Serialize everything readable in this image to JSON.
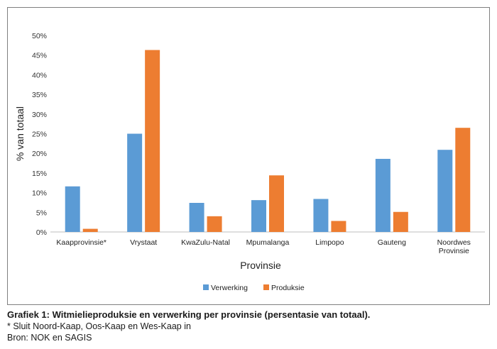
{
  "chart_data": {
    "type": "bar",
    "ylabel": "% van totaal",
    "xlabel": "Provinsie",
    "ylim": [
      0,
      50
    ],
    "yticks": [
      "0%",
      "5%",
      "10%",
      "15%",
      "20%",
      "25%",
      "30%",
      "35%",
      "40%",
      "45%",
      "50%"
    ],
    "grid": false,
    "legend": "bottom",
    "categories": [
      [
        "Kaapprovinsie*"
      ],
      [
        "Vrystaat"
      ],
      [
        "KwaZulu-Natal"
      ],
      [
        "Mpumalanga"
      ],
      [
        "Limpopo"
      ],
      [
        "Gauteng"
      ],
      [
        "Noordwes",
        "Provinsie"
      ]
    ],
    "series": [
      {
        "name": "Verwerking",
        "color": "#5b9bd5",
        "values": [
          11.6,
          25.0,
          7.4,
          8.1,
          8.4,
          18.6,
          20.9
        ]
      },
      {
        "name": "Produksie",
        "color": "#ed7d31",
        "values": [
          0.8,
          46.3,
          4.0,
          14.4,
          2.8,
          5.1,
          26.5
        ]
      }
    ]
  },
  "caption": {
    "title": "Grafiek 1: Witmielieproduksie en verwerking per provinsie (persentasie van totaal).",
    "note": "* Sluit Noord-Kaap, Oos-Kaap en Wes-Kaap in",
    "source": "Bron: NOK en SAGIS"
  }
}
